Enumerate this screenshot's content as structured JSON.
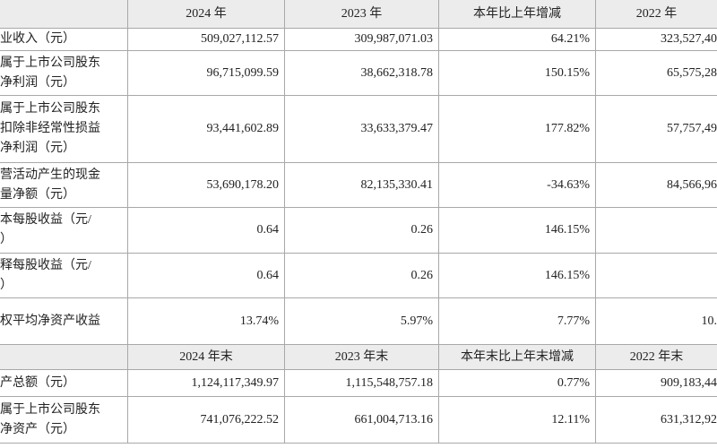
{
  "table": {
    "headers": [
      [
        "2024 年",
        "2023 年",
        "本年比上年增减",
        "2022 年"
      ],
      [
        "2024 年末",
        "2023 年末",
        "本年末比上年末增减",
        "2022 年末"
      ]
    ],
    "rows": [
      {
        "label": [
          "业收入（元）"
        ],
        "cells": [
          "509,027,112.57",
          "309,987,071.03",
          "64.21%",
          "323,527,40"
        ]
      },
      {
        "label": [
          "属于上市公司股东",
          "净利润（元）"
        ],
        "cells": [
          "96,715,099.59",
          "38,662,318.78",
          "150.15%",
          "65,575,28"
        ]
      },
      {
        "label": [
          "属于上市公司股东",
          "扣除非经常性损益",
          "净利润（元）"
        ],
        "cells": [
          "93,441,602.89",
          "33,633,379.47",
          "177.82%",
          "57,757,49"
        ]
      },
      {
        "label": [
          "营活动产生的现金",
          "量净额（元）"
        ],
        "cells": [
          "53,690,178.20",
          "82,135,330.41",
          "-34.63%",
          "84,566,96"
        ]
      },
      {
        "label": [
          "本每股收益（元/",
          "）"
        ],
        "cells": [
          "0.64",
          "0.26",
          "146.15%"
        ]
      },
      {
        "label": [
          "释每股收益（元/",
          "）"
        ],
        "cells": [
          "0.64",
          "0.26",
          "146.15%"
        ]
      },
      {
        "label": [
          "权平均净资产收益"
        ],
        "cells": [
          "13.74%",
          "5.97%",
          "7.77%",
          "10."
        ]
      },
      {
        "label": [
          "产总额（元）"
        ],
        "cells": [
          "1,124,117,349.97",
          "1,115,548,757.18",
          "0.77%",
          "909,183,44"
        ]
      },
      {
        "label": [
          "属于上市公司股东",
          "净资产（元）"
        ],
        "cells": [
          "741,076,222.52",
          "661,004,713.16",
          "12.11%",
          "631,312,92"
        ]
      }
    ]
  }
}
